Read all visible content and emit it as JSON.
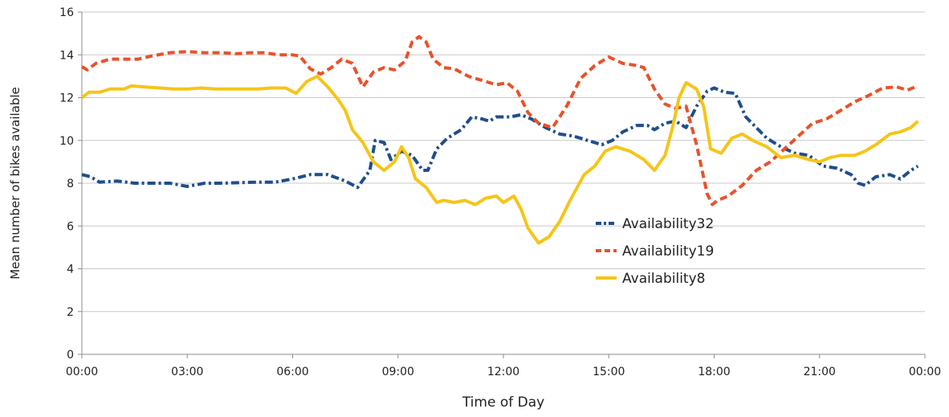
{
  "chart_data": {
    "type": "line",
    "xlabel": "Time of Day",
    "ylabel": "Mean number of bikes available",
    "xlim": [
      0,
      24
    ],
    "ylim": [
      0,
      16
    ],
    "x_ticks": [
      {
        "value": 0,
        "label": "00:00"
      },
      {
        "value": 3,
        "label": "03:00"
      },
      {
        "value": 6,
        "label": "06:00"
      },
      {
        "value": 9,
        "label": "09:00"
      },
      {
        "value": 12,
        "label": "12:00"
      },
      {
        "value": 15,
        "label": "15:00"
      },
      {
        "value": 18,
        "label": "18:00"
      },
      {
        "value": 21,
        "label": "21:00"
      },
      {
        "value": 24,
        "label": "00:00"
      }
    ],
    "y_ticks": [
      {
        "value": 0,
        "label": "0"
      },
      {
        "value": 2,
        "label": "2"
      },
      {
        "value": 4,
        "label": "4"
      },
      {
        "value": 6,
        "label": "6"
      },
      {
        "value": 8,
        "label": "8"
      },
      {
        "value": 10,
        "label": "10"
      },
      {
        "value": 12,
        "label": "12"
      },
      {
        "value": 14,
        "label": "14"
      },
      {
        "value": 16,
        "label": "16"
      }
    ],
    "grid": "horizontal",
    "legend_position": "inside-center-right",
    "series": [
      {
        "name": "Availability32",
        "color": "#1f4e8c",
        "style": "dash-dot",
        "points": [
          [
            0,
            8.4
          ],
          [
            0.25,
            8.3
          ],
          [
            0.5,
            8.05
          ],
          [
            1,
            8.1
          ],
          [
            1.5,
            8.0
          ],
          [
            2,
            8.0
          ],
          [
            2.5,
            8.0
          ],
          [
            3,
            7.85
          ],
          [
            3.5,
            8.0
          ],
          [
            4,
            8.0
          ],
          [
            5,
            8.05
          ],
          [
            5.5,
            8.05
          ],
          [
            6,
            8.2
          ],
          [
            6.5,
            8.4
          ],
          [
            7,
            8.4
          ],
          [
            7.5,
            8.1
          ],
          [
            7.85,
            7.8
          ],
          [
            8.2,
            8.6
          ],
          [
            8.35,
            10.0
          ],
          [
            8.6,
            9.9
          ],
          [
            8.8,
            9.1
          ],
          [
            9.1,
            9.5
          ],
          [
            9.4,
            9.3
          ],
          [
            9.7,
            8.6
          ],
          [
            9.85,
            8.6
          ],
          [
            10.1,
            9.6
          ],
          [
            10.4,
            10.1
          ],
          [
            10.8,
            10.5
          ],
          [
            11.1,
            11.1
          ],
          [
            11.4,
            11.0
          ],
          [
            11.6,
            10.9
          ],
          [
            11.8,
            11.1
          ],
          [
            12.2,
            11.1
          ],
          [
            12.5,
            11.2
          ],
          [
            12.8,
            11.0
          ],
          [
            13.2,
            10.6
          ],
          [
            13.6,
            10.3
          ],
          [
            14,
            10.2
          ],
          [
            14.4,
            10.0
          ],
          [
            14.8,
            9.8
          ],
          [
            15.1,
            10.0
          ],
          [
            15.4,
            10.4
          ],
          [
            15.8,
            10.7
          ],
          [
            16.1,
            10.7
          ],
          [
            16.3,
            10.5
          ],
          [
            16.6,
            10.8
          ],
          [
            16.9,
            10.9
          ],
          [
            17.2,
            10.6
          ],
          [
            17.5,
            11.6
          ],
          [
            17.8,
            12.3
          ],
          [
            18.0,
            12.45
          ],
          [
            18.3,
            12.25
          ],
          [
            18.6,
            12.2
          ],
          [
            18.9,
            11.1
          ],
          [
            19.2,
            10.6
          ],
          [
            19.5,
            10.1
          ],
          [
            19.9,
            9.7
          ],
          [
            20.3,
            9.4
          ],
          [
            20.7,
            9.3
          ],
          [
            21.1,
            8.8
          ],
          [
            21.5,
            8.7
          ],
          [
            21.9,
            8.4
          ],
          [
            22.1,
            8.0
          ],
          [
            22.3,
            7.9
          ],
          [
            22.6,
            8.3
          ],
          [
            23.0,
            8.4
          ],
          [
            23.3,
            8.2
          ],
          [
            23.6,
            8.6
          ],
          [
            23.8,
            8.8
          ]
        ]
      },
      {
        "name": "Availability19",
        "color": "#e8522b",
        "style": "dashed",
        "points": [
          [
            0,
            13.45
          ],
          [
            0.15,
            13.3
          ],
          [
            0.4,
            13.6
          ],
          [
            0.8,
            13.8
          ],
          [
            1.2,
            13.8
          ],
          [
            1.6,
            13.8
          ],
          [
            2,
            13.95
          ],
          [
            2.5,
            14.1
          ],
          [
            3,
            14.15
          ],
          [
            3.5,
            14.1
          ],
          [
            4,
            14.1
          ],
          [
            4.4,
            14.05
          ],
          [
            4.8,
            14.1
          ],
          [
            5.2,
            14.1
          ],
          [
            5.6,
            14.0
          ],
          [
            6.0,
            14.0
          ],
          [
            6.2,
            13.95
          ],
          [
            6.5,
            13.35
          ],
          [
            6.8,
            13.1
          ],
          [
            7.1,
            13.4
          ],
          [
            7.4,
            13.8
          ],
          [
            7.7,
            13.6
          ],
          [
            8.0,
            12.5
          ],
          [
            8.3,
            13.2
          ],
          [
            8.6,
            13.4
          ],
          [
            8.9,
            13.3
          ],
          [
            9.2,
            13.7
          ],
          [
            9.4,
            14.6
          ],
          [
            9.6,
            14.85
          ],
          [
            9.8,
            14.6
          ],
          [
            10.0,
            13.8
          ],
          [
            10.3,
            13.4
          ],
          [
            10.6,
            13.35
          ],
          [
            11.0,
            13.0
          ],
          [
            11.4,
            12.8
          ],
          [
            11.8,
            12.6
          ],
          [
            12.1,
            12.7
          ],
          [
            12.4,
            12.3
          ],
          [
            12.7,
            11.3
          ],
          [
            13.0,
            10.8
          ],
          [
            13.4,
            10.6
          ],
          [
            13.8,
            11.6
          ],
          [
            14.2,
            12.9
          ],
          [
            14.6,
            13.5
          ],
          [
            15.0,
            13.9
          ],
          [
            15.4,
            13.6
          ],
          [
            15.8,
            13.5
          ],
          [
            16.0,
            13.4
          ],
          [
            16.3,
            12.4
          ],
          [
            16.6,
            11.7
          ],
          [
            16.9,
            11.5
          ],
          [
            17.2,
            11.6
          ],
          [
            17.5,
            9.8
          ],
          [
            17.8,
            7.5
          ],
          [
            17.95,
            7.0
          ],
          [
            18.1,
            7.2
          ],
          [
            18.4,
            7.4
          ],
          [
            18.8,
            7.9
          ],
          [
            19.2,
            8.6
          ],
          [
            19.6,
            9.0
          ],
          [
            20.0,
            9.6
          ],
          [
            20.4,
            10.2
          ],
          [
            20.8,
            10.8
          ],
          [
            21.2,
            11.0
          ],
          [
            21.6,
            11.4
          ],
          [
            22.0,
            11.8
          ],
          [
            22.4,
            12.1
          ],
          [
            22.8,
            12.45
          ],
          [
            23.2,
            12.5
          ],
          [
            23.5,
            12.35
          ],
          [
            23.8,
            12.55
          ]
        ]
      },
      {
        "name": "Availability8",
        "color": "#f5c518",
        "style": "solid",
        "points": [
          [
            0,
            12.0
          ],
          [
            0.2,
            12.25
          ],
          [
            0.5,
            12.25
          ],
          [
            0.8,
            12.4
          ],
          [
            1.2,
            12.4
          ],
          [
            1.4,
            12.55
          ],
          [
            1.8,
            12.5
          ],
          [
            2.2,
            12.45
          ],
          [
            2.6,
            12.4
          ],
          [
            3.0,
            12.4
          ],
          [
            3.4,
            12.45
          ],
          [
            3.8,
            12.4
          ],
          [
            4.2,
            12.4
          ],
          [
            4.6,
            12.4
          ],
          [
            5.0,
            12.4
          ],
          [
            5.4,
            12.45
          ],
          [
            5.8,
            12.45
          ],
          [
            6.1,
            12.2
          ],
          [
            6.4,
            12.75
          ],
          [
            6.7,
            13.0
          ],
          [
            7.0,
            12.5
          ],
          [
            7.3,
            11.9
          ],
          [
            7.5,
            11.4
          ],
          [
            7.7,
            10.5
          ],
          [
            8.0,
            9.9
          ],
          [
            8.3,
            9.0
          ],
          [
            8.6,
            8.6
          ],
          [
            8.9,
            9.0
          ],
          [
            9.1,
            9.7
          ],
          [
            9.3,
            9.2
          ],
          [
            9.5,
            8.2
          ],
          [
            9.8,
            7.8
          ],
          [
            10.1,
            7.1
          ],
          [
            10.3,
            7.2
          ],
          [
            10.6,
            7.1
          ],
          [
            10.9,
            7.2
          ],
          [
            11.2,
            7.0
          ],
          [
            11.5,
            7.3
          ],
          [
            11.8,
            7.4
          ],
          [
            12.0,
            7.1
          ],
          [
            12.3,
            7.4
          ],
          [
            12.5,
            6.8
          ],
          [
            12.7,
            5.9
          ],
          [
            13.0,
            5.2
          ],
          [
            13.3,
            5.5
          ],
          [
            13.6,
            6.2
          ],
          [
            13.9,
            7.2
          ],
          [
            14.3,
            8.4
          ],
          [
            14.6,
            8.8
          ],
          [
            14.9,
            9.5
          ],
          [
            15.2,
            9.7
          ],
          [
            15.6,
            9.5
          ],
          [
            16.0,
            9.1
          ],
          [
            16.3,
            8.6
          ],
          [
            16.6,
            9.3
          ],
          [
            16.8,
            10.5
          ],
          [
            17.0,
            12.0
          ],
          [
            17.2,
            12.7
          ],
          [
            17.5,
            12.4
          ],
          [
            17.7,
            11.6
          ],
          [
            17.9,
            9.6
          ],
          [
            18.2,
            9.4
          ],
          [
            18.5,
            10.1
          ],
          [
            18.8,
            10.3
          ],
          [
            19.1,
            10.0
          ],
          [
            19.5,
            9.7
          ],
          [
            19.9,
            9.2
          ],
          [
            20.3,
            9.3
          ],
          [
            20.7,
            9.1
          ],
          [
            21.0,
            9.0
          ],
          [
            21.3,
            9.2
          ],
          [
            21.6,
            9.3
          ],
          [
            22.0,
            9.3
          ],
          [
            22.3,
            9.5
          ],
          [
            22.6,
            9.8
          ],
          [
            23.0,
            10.3
          ],
          [
            23.3,
            10.4
          ],
          [
            23.6,
            10.6
          ],
          [
            23.8,
            10.9
          ]
        ]
      }
    ]
  }
}
